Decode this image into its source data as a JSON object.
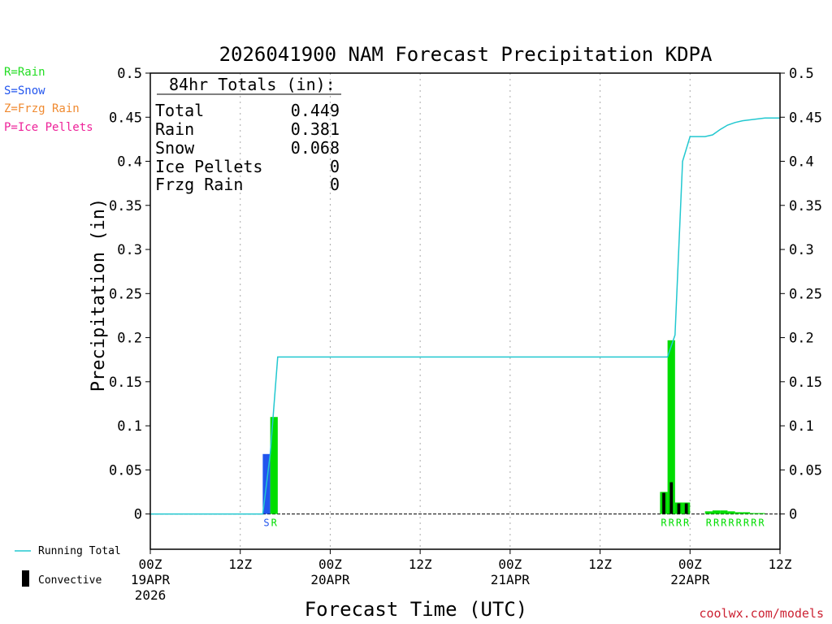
{
  "chart_data": {
    "type": "bar",
    "title": "2026041900 NAM Forecast Precipitation KDPA",
    "xlabel": "Forecast Time (UTC)",
    "ylabel": "Precipitation (in)",
    "xlim_hours": [
      0,
      84
    ],
    "ylim": [
      -0.04,
      0.5
    ],
    "yticks": [
      0,
      0.05,
      0.1,
      0.15,
      0.2,
      0.25,
      0.3,
      0.35,
      0.4,
      0.45,
      0.5
    ],
    "ytick_labels": [
      "0",
      "0.05",
      "0.1",
      "0.15",
      "0.2",
      "0.25",
      "0.3",
      "0.35",
      "0.4",
      "0.45",
      "0.5"
    ],
    "xticks": [
      {
        "hour": 0,
        "label": "00Z",
        "sub": "19APR",
        "sub2": "2026"
      },
      {
        "hour": 12,
        "label": "12Z",
        "sub": "",
        "sub2": ""
      },
      {
        "hour": 24,
        "label": "00Z",
        "sub": "20APR",
        "sub2": ""
      },
      {
        "hour": 36,
        "label": "12Z",
        "sub": "",
        "sub2": ""
      },
      {
        "hour": 48,
        "label": "00Z",
        "sub": "21APR",
        "sub2": ""
      },
      {
        "hour": 60,
        "label": "12Z",
        "sub": "",
        "sub2": ""
      },
      {
        "hour": 72,
        "label": "00Z",
        "sub": "22APR",
        "sub2": ""
      },
      {
        "hour": 84,
        "label": "12Z",
        "sub": "",
        "sub2": ""
      }
    ],
    "bars": [
      {
        "hour": 16,
        "width_hours": 1,
        "value": 0.068,
        "ptype": "S",
        "convective": 0
      },
      {
        "hour": 17,
        "width_hours": 1,
        "value": 0.11,
        "ptype": "R",
        "convective": 0
      },
      {
        "hour": 69,
        "width_hours": 1,
        "value": 0.025,
        "ptype": "R",
        "convective": 0.024
      },
      {
        "hour": 70,
        "width_hours": 1,
        "value": 0.197,
        "ptype": "R",
        "convective": 0.036
      },
      {
        "hour": 71,
        "width_hours": 1,
        "value": 0.013,
        "ptype": "R",
        "convective": 0.012
      },
      {
        "hour": 72,
        "width_hours": 1,
        "value": 0.013,
        "ptype": "R",
        "convective": 0.012
      },
      {
        "hour": 75,
        "width_hours": 1,
        "value": 0.003,
        "ptype": "R",
        "convective": 0
      },
      {
        "hour": 76,
        "width_hours": 1,
        "value": 0.004,
        "ptype": "R",
        "convective": 0
      },
      {
        "hour": 77,
        "width_hours": 1,
        "value": 0.004,
        "ptype": "R",
        "convective": 0
      },
      {
        "hour": 78,
        "width_hours": 1,
        "value": 0.003,
        "ptype": "R",
        "convective": 0
      },
      {
        "hour": 79,
        "width_hours": 1,
        "value": 0.002,
        "ptype": "R",
        "convective": 0
      },
      {
        "hour": 80,
        "width_hours": 1,
        "value": 0.002,
        "ptype": "R",
        "convective": 0
      },
      {
        "hour": 81,
        "width_hours": 1,
        "value": 0.001,
        "ptype": "R",
        "convective": 0
      },
      {
        "hour": 82,
        "width_hours": 1,
        "value": 0.001,
        "ptype": "R",
        "convective": 0
      }
    ],
    "ptype_labels": [
      {
        "hour": 16,
        "text": "S"
      },
      {
        "hour": 17,
        "text": "R"
      },
      {
        "hour": 69,
        "text": "R"
      },
      {
        "hour": 70,
        "text": "R"
      },
      {
        "hour": 71,
        "text": "R"
      },
      {
        "hour": 72,
        "text": "R"
      },
      {
        "hour": 75,
        "text": "R"
      },
      {
        "hour": 76,
        "text": "R"
      },
      {
        "hour": 77,
        "text": "R"
      },
      {
        "hour": 78,
        "text": "R"
      },
      {
        "hour": 79,
        "text": "R"
      },
      {
        "hour": 80,
        "text": "R"
      },
      {
        "hour": 81,
        "text": "R"
      },
      {
        "hour": 82,
        "text": "R"
      }
    ],
    "running_total": {
      "name": "Running Total",
      "x": [
        0,
        3,
        6,
        9,
        12,
        15,
        16,
        17,
        18,
        21,
        24,
        36,
        48,
        60,
        66,
        69,
        70,
        71,
        72,
        73,
        74,
        75,
        76,
        77,
        78,
        79,
        80,
        81,
        82,
        83,
        84
      ],
      "y": [
        0,
        0,
        0,
        0,
        0,
        0,
        0.068,
        0.178,
        0.178,
        0.178,
        0.178,
        0.178,
        0.178,
        0.178,
        0.178,
        0.178,
        0.203,
        0.4,
        0.428,
        0.428,
        0.428,
        0.43,
        0.436,
        0.441,
        0.444,
        0.446,
        0.447,
        0.448,
        0.449,
        0.449,
        0.449
      ]
    },
    "totals_box": {
      "heading": "84hr Totals (in):",
      "rows": [
        {
          "label": "Total",
          "value": "0.449"
        },
        {
          "label": "Rain",
          "value": "0.381"
        },
        {
          "label": "Snow",
          "value": "0.068"
        },
        {
          "label": "Ice Pellets",
          "value": "0"
        },
        {
          "label": "Frzg Rain",
          "value": "0"
        }
      ]
    },
    "ptype_legend": [
      {
        "text": "R=Rain",
        "color": "#22dd22"
      },
      {
        "text": "S=Snow",
        "color": "#2255ee"
      },
      {
        "text": "Z=Frzg Rain",
        "color": "#f08a30"
      },
      {
        "text": "P=Ice Pellets",
        "color": "#ee2299"
      }
    ],
    "series_key": [
      {
        "text": "Running Total",
        "kind": "line"
      },
      {
        "text": "Convective",
        "kind": "bar"
      }
    ],
    "colors": {
      "rain": "#00dd00",
      "snow": "#2255ee",
      "convective": "#000000",
      "running_total": "#22c8d0",
      "grid": "#aaaaaa",
      "credit": "#cc2233"
    },
    "credit": "coolwx.com/models"
  }
}
